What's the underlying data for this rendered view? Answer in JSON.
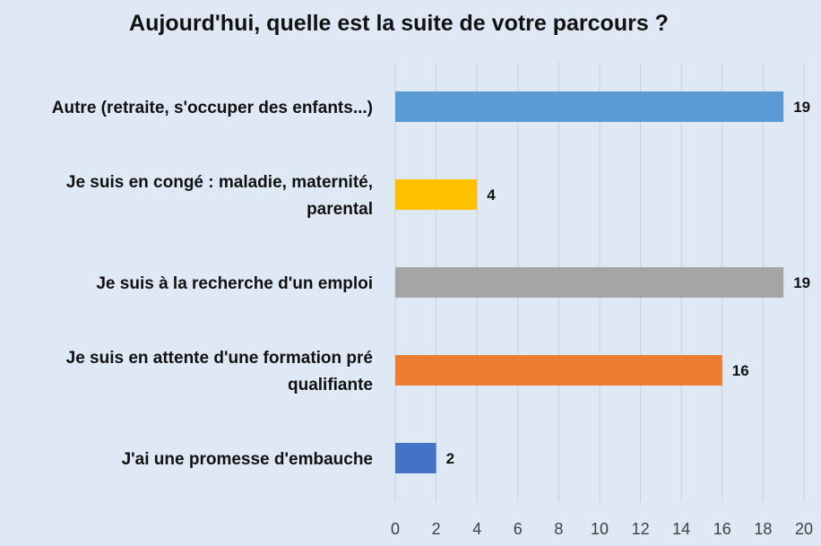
{
  "chart_data": {
    "type": "bar",
    "orientation": "horizontal",
    "title": "Aujourd'hui, quelle est la suite de votre parcours ?",
    "categories": [
      "Autre (retraite, s'occuper des enfants...)",
      "Je suis en congé : maladie, maternité, parental",
      "Je suis à la recherche d'un emploi",
      "Je suis en attente d'une formation pré qualifiante",
      "J'ai une promesse d'embauche"
    ],
    "category_lines": [
      [
        "Autre (retraite, s'occuper des enfants...)"
      ],
      [
        "Je suis en congé : maladie, maternité,",
        "parental"
      ],
      [
        "Je suis à la recherche d'un emploi"
      ],
      [
        "Je suis en attente d'une formation pré",
        "qualifiante"
      ],
      [
        "J'ai une promesse d'embauche"
      ]
    ],
    "values": [
      19,
      4,
      19,
      16,
      2
    ],
    "colors": [
      "#5b9bd5",
      "#ffc000",
      "#a5a5a5",
      "#ed7d31",
      "#4472c4"
    ],
    "xlim": [
      0,
      20
    ],
    "xticks": [
      0,
      2,
      4,
      6,
      8,
      10,
      12,
      14,
      16,
      18,
      20
    ],
    "grid": true,
    "data_labels": true
  }
}
